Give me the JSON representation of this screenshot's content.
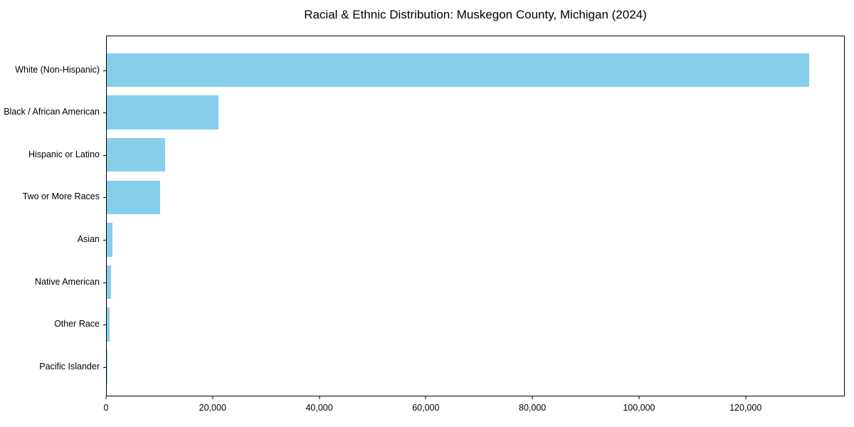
{
  "title": "Racial & Ethnic Distribution: Muskegon County, Michigan (2024)",
  "colors": {
    "bar": "#87CEEB",
    "axis": "#000000",
    "background": "#FFFFFF"
  },
  "chart_data": {
    "type": "bar",
    "orientation": "horizontal",
    "title": "Racial & Ethnic Distribution: Muskegon County, Michigan (2024)",
    "categories": [
      "White (Non-Hispanic)",
      "Black / African American",
      "Hispanic or Latino",
      "Two or More Races",
      "Asian",
      "Native American",
      "Other Race",
      "Pacific Islander"
    ],
    "values": [
      132000,
      21000,
      11000,
      10000,
      1100,
      800,
      500,
      50
    ],
    "xlabel": "",
    "ylabel": "",
    "xlim": [
      0,
      138600
    ],
    "xticks": [
      {
        "value": 0,
        "label": "0"
      },
      {
        "value": 20000,
        "label": "20,000"
      },
      {
        "value": 40000,
        "label": "40,000"
      },
      {
        "value": 60000,
        "label": "60,000"
      },
      {
        "value": 80000,
        "label": "80,000"
      },
      {
        "value": 100000,
        "label": "100,000"
      },
      {
        "value": 120000,
        "label": "120,000"
      }
    ],
    "grid": false,
    "legend": false,
    "bar_color": "#87CEEB"
  }
}
